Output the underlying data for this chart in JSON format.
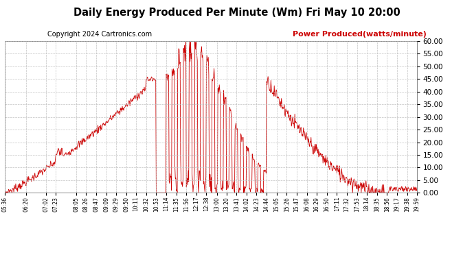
{
  "title": "Daily Energy Produced Per Minute (Wm) Fri May 10 20:00",
  "copyright": "Copyright 2024 Cartronics.com",
  "legend_label": "Power Produced(watts/minute)",
  "ylim": [
    0.0,
    60.0
  ],
  "yticks": [
    0.0,
    5.0,
    10.0,
    15.0,
    20.0,
    25.0,
    30.0,
    35.0,
    40.0,
    45.0,
    50.0,
    55.0,
    60.0
  ],
  "line_color": "#cc0000",
  "bg_color": "#ffffff",
  "grid_color": "#bbbbbb",
  "title_color": "#000000",
  "copyright_color": "#000000",
  "legend_color": "#cc0000",
  "figsize": [
    6.9,
    3.75
  ],
  "dpi": 100,
  "tick_labels": [
    "05:36",
    "06:20",
    "07:02",
    "07:23",
    "08:05",
    "08:26",
    "08:47",
    "09:09",
    "09:29",
    "09:50",
    "10:11",
    "10:32",
    "10:53",
    "11:14",
    "11:35",
    "11:56",
    "12:17",
    "12:38",
    "13:00",
    "13:20",
    "13:41",
    "14:02",
    "14:23",
    "14:44",
    "15:05",
    "15:26",
    "15:47",
    "16:08",
    "16:29",
    "16:50",
    "17:11",
    "17:32",
    "17:53",
    "18:14",
    "18:35",
    "18:56",
    "19:17",
    "19:38",
    "19:59"
  ]
}
